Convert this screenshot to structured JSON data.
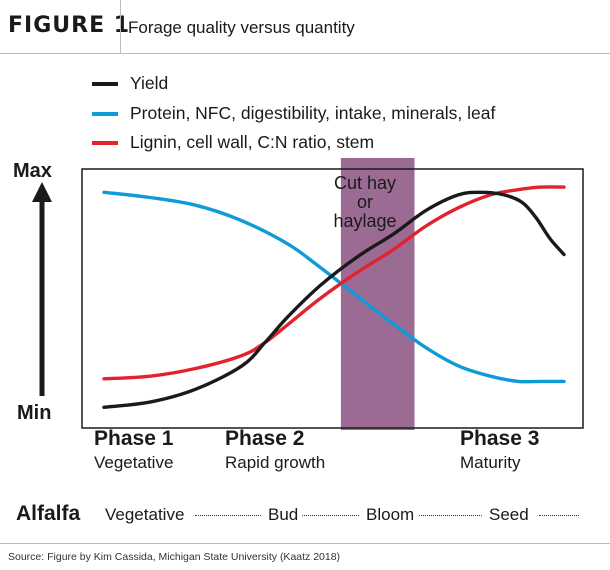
{
  "figure": {
    "label": "FIGURE 1",
    "title": "Forage quality versus quantity"
  },
  "colors": {
    "yield": "#1a1a1a",
    "protein": "#0f9bd7",
    "lignin": "#e2232f",
    "cut_band": "#9c6b93"
  },
  "chart_data": {
    "type": "line",
    "title": "Forage quality versus quantity",
    "x_domain": [
      0,
      100
    ],
    "y_domain": [
      0,
      100
    ],
    "ylabel_top": "Max",
    "ylabel_bottom": "Min",
    "series": [
      {
        "name": "Yield",
        "key": "yield",
        "x": [
          0,
          10,
          20,
          30,
          35,
          40,
          47,
          55,
          63,
          70,
          77,
          82,
          87,
          91,
          94,
          97,
          100
        ],
        "y": [
          8,
          10,
          15,
          24,
          33,
          43,
          55,
          66,
          75,
          84,
          90,
          91,
          90,
          87,
          81,
          73,
          67
        ]
      },
      {
        "name": "Protein, NFC, digestibility, intake, minerals, leaf",
        "key": "protein",
        "x": [
          0,
          10,
          20,
          30,
          40,
          47,
          55,
          63,
          70,
          77,
          84,
          90,
          95,
          100
        ],
        "y": [
          91,
          89,
          86,
          80,
          71,
          62,
          51,
          40,
          31,
          24,
          20,
          18,
          18,
          18
        ]
      },
      {
        "name": "Lignin, cell wall, C:N ratio, stem",
        "key": "lignin",
        "x": [
          0,
          10,
          20,
          30,
          35,
          40,
          47,
          55,
          63,
          70,
          77,
          84,
          90,
          95,
          100
        ],
        "y": [
          19,
          20,
          23,
          28,
          33,
          40,
          50,
          60,
          69,
          78,
          85,
          90,
          92,
          93,
          93
        ]
      }
    ],
    "band": {
      "label": "Cut hay or haylage",
      "x_start": 51.5,
      "x_end": 67.5
    },
    "grid": false,
    "legend": "top"
  },
  "legend": [
    {
      "label": "Yield",
      "color_key": "yield"
    },
    {
      "label": "Protein, NFC, digestibility, intake, minerals, leaf",
      "color_key": "protein"
    },
    {
      "label": "Lignin, cell wall, C:N ratio, stem",
      "color_key": "lignin"
    }
  ],
  "axis": {
    "max_label": "Max",
    "min_label": "Min"
  },
  "cut_band": {
    "line1": "Cut hay",
    "line2": "or",
    "line3": "haylage"
  },
  "phases": [
    {
      "title": "Phase 1",
      "subtitle": "Vegetative"
    },
    {
      "title": "Phase 2",
      "subtitle": "Rapid growth"
    },
    {
      "title": "Phase 3",
      "subtitle": "Maturity"
    }
  ],
  "alfalfa": {
    "label": "Alfalfa",
    "stages": [
      "Vegetative",
      "Bud",
      "Bloom",
      "Seed"
    ]
  },
  "source": "Source: Figure by Kim Cassida, Michigan State University (Kaatz 2018)"
}
